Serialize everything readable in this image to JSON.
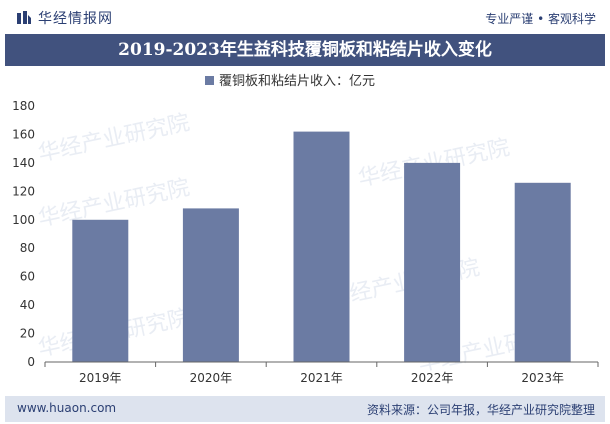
{
  "header": {
    "brand": "华经情报网",
    "tagline": "专业严谨 • 客观科学"
  },
  "title": "2019-2023年生益科技覆铜板和粘结片收入变化",
  "watermark": "华经产业研究院",
  "chart_data": {
    "type": "bar",
    "categories": [
      "2019年",
      "2020年",
      "2021年",
      "2022年",
      "2023年"
    ],
    "series": [
      {
        "name": "覆铜板和粘结片收入：亿元",
        "values": [
          100,
          108,
          162,
          140,
          126
        ]
      }
    ],
    "ylim": [
      0,
      180
    ],
    "yticks": [
      0,
      20,
      40,
      60,
      80,
      100,
      120,
      140,
      160,
      180
    ],
    "legend_position": "top-center",
    "grid": false,
    "bar_color": "#6b7ba3"
  },
  "footer": {
    "url": "www.huaon.com",
    "source": "资料来源：公司年报，华经产业研究院整理"
  }
}
